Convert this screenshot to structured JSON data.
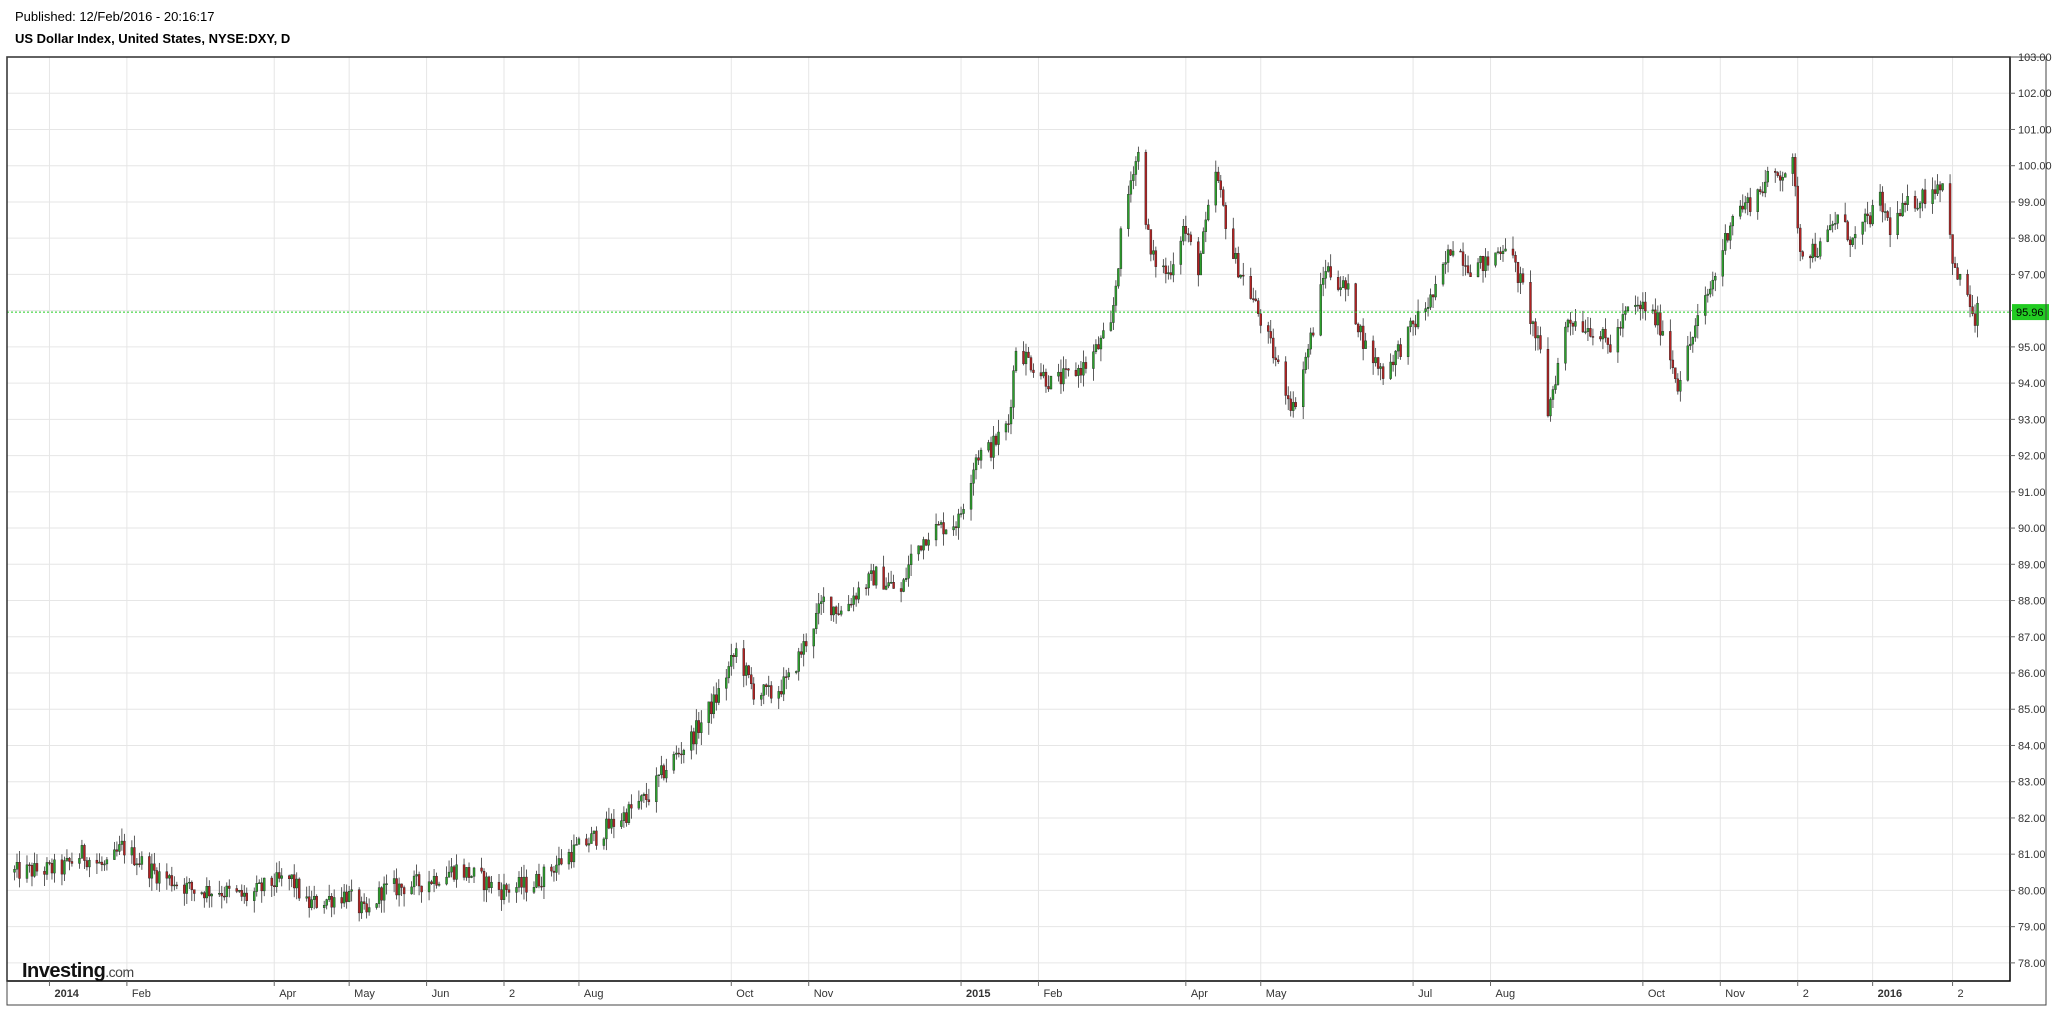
{
  "header": {
    "published": "Published: 12/Feb/2016 - 20:16:17",
    "instrument": "US Dollar Index, United States, NYSE:DXY, D"
  },
  "logo": {
    "brand": "Investing",
    "suffix": ".com"
  },
  "colors": {
    "up": "#2ca02c",
    "down": "#b22222",
    "grid": "#e6e6e6",
    "last_price": "#22cc22",
    "frame": "#000000"
  },
  "chart_data": {
    "type": "candlestick",
    "title": "US Dollar Index, United States, NYSE:DXY, D",
    "xlabel": "",
    "ylabel": "",
    "ylim": [
      77.5,
      103.0
    ],
    "grid": true,
    "y_ticks": [
      "78.00",
      "79.00",
      "80.00",
      "81.00",
      "82.00",
      "83.00",
      "84.00",
      "85.00",
      "86.00",
      "87.00",
      "88.00",
      "89.00",
      "90.00",
      "91.00",
      "92.00",
      "93.00",
      "94.00",
      "95.00",
      "96.00",
      "97.00",
      "98.00",
      "99.00",
      "100.00",
      "101.00",
      "102.00",
      "103.00"
    ],
    "x_ticks": [
      {
        "label": "2014",
        "date": "2014-01-01",
        "bold": true
      },
      {
        "label": "Feb",
        "date": "2014-02-01",
        "bold": false
      },
      {
        "label": "Apr",
        "date": "2014-04-01",
        "bold": false
      },
      {
        "label": "May",
        "date": "2014-05-01",
        "bold": false
      },
      {
        "label": "Jun",
        "date": "2014-06-01",
        "bold": false
      },
      {
        "label": "2",
        "date": "2014-07-02",
        "bold": false
      },
      {
        "label": "Aug",
        "date": "2014-08-01",
        "bold": false
      },
      {
        "label": "Oct",
        "date": "2014-10-01",
        "bold": false
      },
      {
        "label": "Nov",
        "date": "2014-11-01",
        "bold": false
      },
      {
        "label": "2015",
        "date": "2015-01-01",
        "bold": true
      },
      {
        "label": "Feb",
        "date": "2015-02-01",
        "bold": false
      },
      {
        "label": "Apr",
        "date": "2015-04-01",
        "bold": false
      },
      {
        "label": "May",
        "date": "2015-05-01",
        "bold": false
      },
      {
        "label": "Jul",
        "date": "2015-07-01",
        "bold": false
      },
      {
        "label": "Aug",
        "date": "2015-08-01",
        "bold": false
      },
      {
        "label": "Oct",
        "date": "2015-10-01",
        "bold": false
      },
      {
        "label": "Nov",
        "date": "2015-11-01",
        "bold": false
      },
      {
        "label": "2",
        "date": "2015-12-02",
        "bold": false
      },
      {
        "label": "2016",
        "date": "2016-01-01",
        "bold": true
      },
      {
        "label": "2",
        "date": "2016-02-02",
        "bold": false
      }
    ],
    "last_price": {
      "value": 95.96,
      "label": "95.96"
    },
    "series": [
      {
        "values": [
          {
            "date": "2013-12-18",
            "close": 80.5
          },
          {
            "date": "2014-01-06",
            "close": 80.6
          },
          {
            "date": "2014-01-14",
            "close": 81.0
          },
          {
            "date": "2014-01-24",
            "close": 80.6
          },
          {
            "date": "2014-01-30",
            "close": 81.2
          },
          {
            "date": "2014-02-12",
            "close": 80.5
          },
          {
            "date": "2014-02-28",
            "close": 80.0
          },
          {
            "date": "2014-03-10",
            "close": 80.0
          },
          {
            "date": "2014-03-21",
            "close": 79.8
          },
          {
            "date": "2014-03-31",
            "close": 80.2
          },
          {
            "date": "2014-04-08",
            "close": 80.3
          },
          {
            "date": "2014-04-14",
            "close": 79.6
          },
          {
            "date": "2014-04-30",
            "close": 79.9
          },
          {
            "date": "2014-05-08",
            "close": 79.3
          },
          {
            "date": "2014-05-14",
            "close": 80.0
          },
          {
            "date": "2014-05-30",
            "close": 80.2
          },
          {
            "date": "2014-06-13",
            "close": 80.6
          },
          {
            "date": "2014-06-20",
            "close": 80.4
          },
          {
            "date": "2014-07-01",
            "close": 80.0
          },
          {
            "date": "2014-07-14",
            "close": 80.2
          },
          {
            "date": "2014-07-28",
            "close": 81.0
          },
          {
            "date": "2014-08-08",
            "close": 81.5
          },
          {
            "date": "2014-08-29",
            "close": 82.6
          },
          {
            "date": "2014-09-05",
            "close": 83.4
          },
          {
            "date": "2014-09-15",
            "close": 84.2
          },
          {
            "date": "2014-09-25",
            "close": 85.3
          },
          {
            "date": "2014-10-03",
            "close": 86.6
          },
          {
            "date": "2014-10-10",
            "close": 85.5
          },
          {
            "date": "2014-10-17",
            "close": 85.4
          },
          {
            "date": "2014-10-24",
            "close": 85.8
          },
          {
            "date": "2014-11-07",
            "close": 88.0
          },
          {
            "date": "2014-11-14",
            "close": 87.7
          },
          {
            "date": "2014-11-21",
            "close": 88.3
          },
          {
            "date": "2014-11-28",
            "close": 88.7
          },
          {
            "date": "2014-12-08",
            "close": 88.2
          },
          {
            "date": "2014-12-12",
            "close": 89.2
          },
          {
            "date": "2014-12-19",
            "close": 89.9
          },
          {
            "date": "2014-12-31",
            "close": 90.2
          },
          {
            "date": "2015-01-07",
            "close": 92.0
          },
          {
            "date": "2015-01-13",
            "close": 92.2
          },
          {
            "date": "2015-01-20",
            "close": 92.9
          },
          {
            "date": "2015-01-23",
            "close": 95.0
          },
          {
            "date": "2015-01-30",
            "close": 94.5
          },
          {
            "date": "2015-02-06",
            "close": 94.0
          },
          {
            "date": "2015-02-13",
            "close": 94.2
          },
          {
            "date": "2015-02-20",
            "close": 94.5
          },
          {
            "date": "2015-03-02",
            "close": 95.5
          },
          {
            "date": "2015-03-06",
            "close": 98.0
          },
          {
            "date": "2015-03-11",
            "close": 100.0
          },
          {
            "date": "2015-03-13",
            "close": 100.3
          },
          {
            "date": "2015-03-18",
            "close": 97.5
          },
          {
            "date": "2015-03-25",
            "close": 97.0
          },
          {
            "date": "2015-03-31",
            "close": 98.3
          },
          {
            "date": "2015-04-06",
            "close": 97.2
          },
          {
            "date": "2015-04-13",
            "close": 99.8
          },
          {
            "date": "2015-04-20",
            "close": 97.5
          },
          {
            "date": "2015-04-28",
            "close": 96.3
          },
          {
            "date": "2015-05-05",
            "close": 95.0
          },
          {
            "date": "2015-05-14",
            "close": 93.3
          },
          {
            "date": "2015-05-22",
            "close": 95.5
          },
          {
            "date": "2015-05-27",
            "close": 97.2
          },
          {
            "date": "2015-06-05",
            "close": 96.5
          },
          {
            "date": "2015-06-12",
            "close": 95.0
          },
          {
            "date": "2015-06-19",
            "close": 94.3
          },
          {
            "date": "2015-06-26",
            "close": 95.0
          },
          {
            "date": "2015-07-03",
            "close": 95.8
          },
          {
            "date": "2015-07-10",
            "close": 96.5
          },
          {
            "date": "2015-07-17",
            "close": 97.9
          },
          {
            "date": "2015-07-24",
            "close": 97.2
          },
          {
            "date": "2015-07-31",
            "close": 97.3
          },
          {
            "date": "2015-08-07",
            "close": 97.9
          },
          {
            "date": "2015-08-14",
            "close": 96.6
          },
          {
            "date": "2015-08-21",
            "close": 94.8
          },
          {
            "date": "2015-08-24",
            "close": 93.2
          },
          {
            "date": "2015-09-01",
            "close": 95.8
          },
          {
            "date": "2015-09-11",
            "close": 95.5
          },
          {
            "date": "2015-09-18",
            "close": 95.0
          },
          {
            "date": "2015-09-25",
            "close": 96.0
          },
          {
            "date": "2015-10-02",
            "close": 96.1
          },
          {
            "date": "2015-10-09",
            "close": 95.5
          },
          {
            "date": "2015-10-15",
            "close": 94.0
          },
          {
            "date": "2015-10-22",
            "close": 95.5
          },
          {
            "date": "2015-10-30",
            "close": 97.0
          },
          {
            "date": "2015-11-06",
            "close": 98.7
          },
          {
            "date": "2015-11-13",
            "close": 99.0
          },
          {
            "date": "2015-11-20",
            "close": 99.6
          },
          {
            "date": "2015-11-30",
            "close": 100.0
          },
          {
            "date": "2015-12-03",
            "close": 97.7
          },
          {
            "date": "2015-12-11",
            "close": 97.7
          },
          {
            "date": "2015-12-18",
            "close": 98.6
          },
          {
            "date": "2015-12-24",
            "close": 97.9
          },
          {
            "date": "2016-01-04",
            "close": 99.0
          },
          {
            "date": "2016-01-08",
            "close": 98.3
          },
          {
            "date": "2016-01-15",
            "close": 98.9
          },
          {
            "date": "2016-01-22",
            "close": 99.2
          },
          {
            "date": "2016-01-29",
            "close": 99.6
          },
          {
            "date": "2016-02-03",
            "close": 97.0
          },
          {
            "date": "2016-02-08",
            "close": 96.5
          },
          {
            "date": "2016-02-11",
            "close": 95.5
          },
          {
            "date": "2016-02-12",
            "close": 95.96
          }
        ]
      }
    ]
  }
}
